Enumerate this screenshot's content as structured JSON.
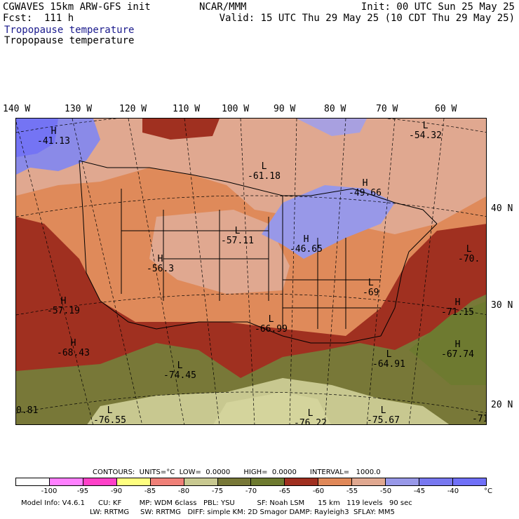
{
  "header": {
    "model": "CGWAVES 15km ARW-GFS init",
    "fcst": "Fcst:  111 h",
    "center": "NCAR/MMM",
    "init": "Init: 00 UTC Sun 25 May 25",
    "valid": "Valid: 15 UTC Thu 29 May 25 (10 CDT Thu 29 May 25)",
    "field_line1": "Tropopause temperature",
    "field_line2": "Tropopause temperature"
  },
  "longitudes": [
    "140 W",
    "130 W",
    "120 W",
    "110 W",
    "100 W",
    "90 W",
    "80 W",
    "70 W",
    "60 W"
  ],
  "latitudes": [
    "40 N",
    "30 N",
    "20 N"
  ],
  "extrema": [
    {
      "type": "H",
      "value": "-41.13"
    },
    {
      "type": "L",
      "value": "-54.32"
    },
    {
      "type": "L",
      "value": "-61.18"
    },
    {
      "type": "H",
      "value": "-49.66"
    },
    {
      "type": "L",
      "value": "-57.11"
    },
    {
      "type": "H",
      "value": "-46.65"
    },
    {
      "type": "H",
      "value": "-56.3"
    },
    {
      "type": "L",
      "value": "-70."
    },
    {
      "type": "H",
      "value": "-57.19"
    },
    {
      "type": "L",
      "value": "-66.99"
    },
    {
      "type": "L",
      "value": "-69"
    },
    {
      "type": "H",
      "value": "-71.15"
    },
    {
      "type": "H",
      "value": "-68.43"
    },
    {
      "type": "L",
      "value": "-74.45"
    },
    {
      "type": "H",
      "value": "-67.74"
    },
    {
      "type": "L",
      "value": "-64.91"
    },
    {
      "type": "L",
      "value": "-76.55"
    },
    {
      "type": "L",
      "value": "-76.22"
    },
    {
      "type": "L",
      "value": "-75.67"
    }
  ],
  "edge_labels": [
    "0.81",
    "-71"
  ],
  "contours_line": "CONTOURS:  UNITS=°C  LOW=  0.0000      HIGH=  0.0000      INTERVAL=   1000.0",
  "colorbar": {
    "colors": [
      "#ffffff",
      "#ff80ff",
      "#ff40c8",
      "#ffff80",
      "#f08078",
      "#c8c890",
      "#787838",
      "#6e7a30",
      "#a03020",
      "#e08858",
      "#e0a890",
      "#9898e8",
      "#7878f0",
      "#7070f8"
    ],
    "ticks": [
      "-100",
      "-95",
      "-90",
      "-85",
      "-80",
      "-75",
      "-70",
      "-65",
      "-60",
      "-55",
      "-50",
      "-45",
      "-40"
    ],
    "unit": "°C"
  },
  "footer": {
    "line1": "Model Info: V4.6.1      CU: KF        MP: WDM 6class   PBL: YSU          SF: Noah LSM      15 km   119 levels   90 sec",
    "line2": "LW: RRTMG     SW: RRTMG   DIFF: simple KM: 2D Smagor DAMP: Rayleigh3  SFLAY: MM5"
  }
}
